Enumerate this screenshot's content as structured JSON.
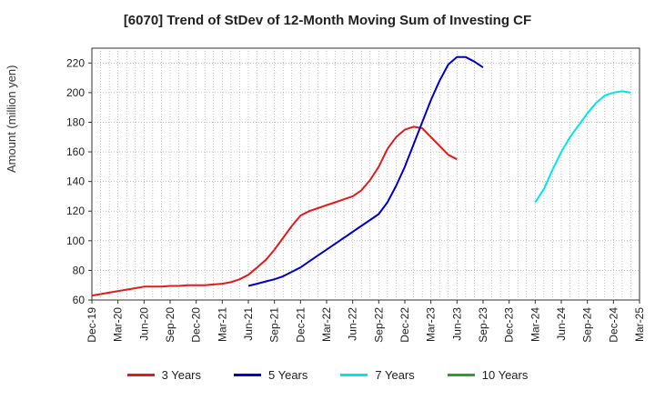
{
  "chart_data": {
    "type": "line",
    "title": "[6070]  Trend of StDev of 12-Month Moving Sum of Investing CF",
    "ylabel": "Amount (million yen)",
    "xlabel": "",
    "ylim": [
      60,
      230
    ],
    "yticks": [
      60,
      80,
      100,
      120,
      140,
      160,
      180,
      200,
      220
    ],
    "xticks": [
      "Dec-19",
      "Mar-20",
      "Jun-20",
      "Sep-20",
      "Dec-20",
      "Mar-21",
      "Jun-21",
      "Sep-21",
      "Dec-21",
      "Mar-22",
      "Jun-22",
      "Sep-22",
      "Dec-22",
      "Mar-23",
      "Jun-23",
      "Sep-23",
      "Dec-23",
      "Mar-24",
      "Jun-24",
      "Sep-24",
      "Dec-24",
      "Mar-25"
    ],
    "grid": true,
    "legend_position": "bottom",
    "series": [
      {
        "name": "3 Years",
        "color": "#e41a1c",
        "start_index": 0,
        "values": [
          63,
          64,
          65,
          66,
          67,
          68,
          69,
          69,
          69,
          69.5,
          69.5,
          70,
          70,
          70,
          70.5,
          71,
          72,
          74,
          77,
          82,
          87,
          94,
          102,
          110,
          117,
          120,
          122,
          124,
          126,
          128,
          130,
          134,
          141,
          150,
          162,
          170,
          175,
          177,
          176,
          170,
          164,
          158,
          155
        ]
      },
      {
        "name": "5 Years",
        "color": "#0000cc",
        "start_index": 18,
        "values": [
          69.5,
          71,
          72.5,
          74,
          76,
          79,
          82,
          86,
          90,
          94,
          98,
          102,
          106,
          110,
          114,
          118,
          126,
          137,
          150,
          165,
          180,
          195,
          208,
          219,
          224,
          224,
          221,
          217
        ]
      },
      {
        "name": "7 Years",
        "color": "#00e5ee",
        "start_index": 51,
        "values": [
          126,
          135,
          148,
          160,
          170,
          178,
          186,
          193,
          198,
          200,
          201,
          200
        ]
      },
      {
        "name": "10 Years",
        "color": "#2ca02c",
        "start_index": 0,
        "values": []
      }
    ]
  }
}
